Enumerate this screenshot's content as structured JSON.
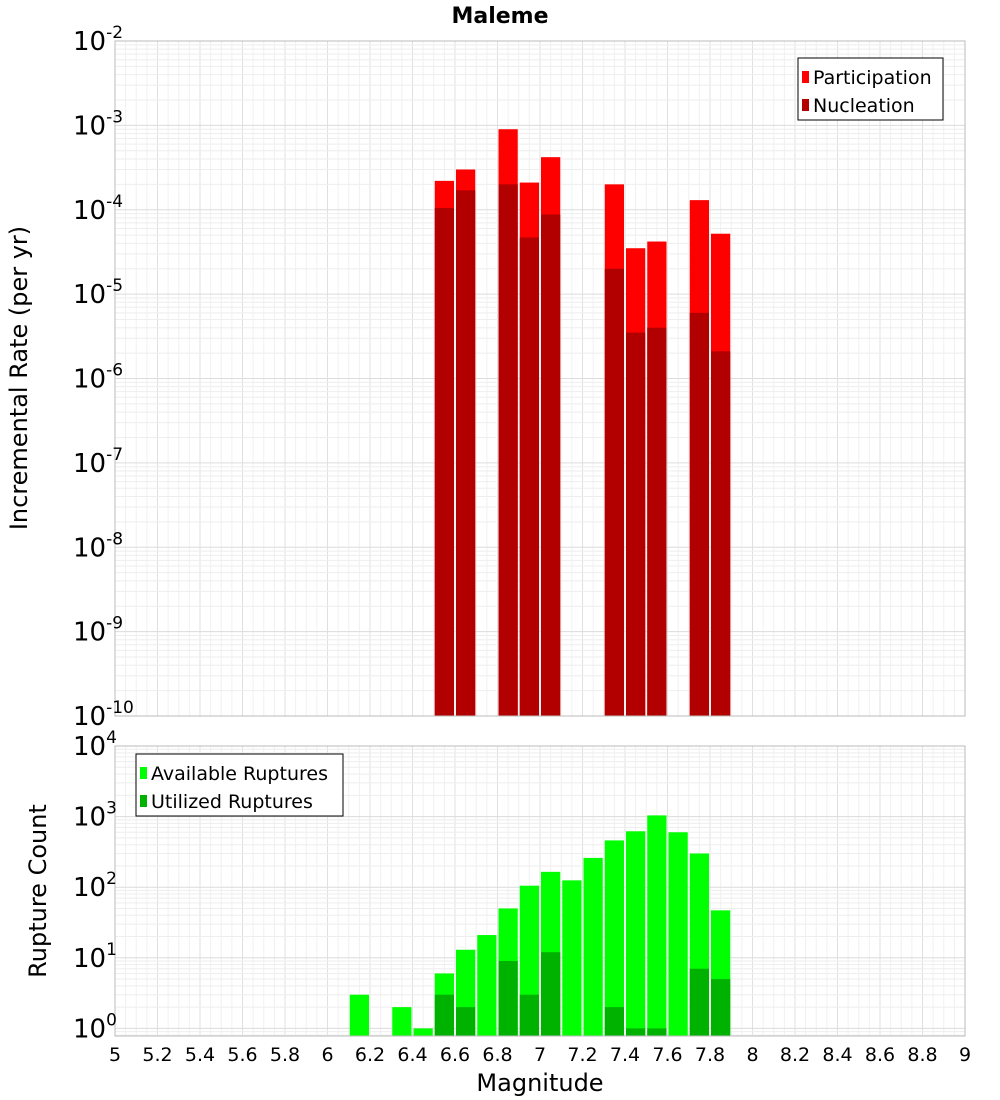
{
  "chart_data": [
    {
      "type": "bar",
      "title": "Maleme",
      "xlabel": "",
      "ylabel": "Incremental Rate (per yr)",
      "yscale": "log",
      "ylim": [
        1e-10,
        0.01
      ],
      "xlim": [
        5,
        9
      ],
      "grid": true,
      "legend": "top-right",
      "colors": {
        "Participation": "#ff0000",
        "Nucleation": "#b20000"
      },
      "x": [
        6.55,
        6.65,
        6.85,
        6.95,
        7.05,
        7.35,
        7.45,
        7.55,
        7.75,
        7.85
      ],
      "series": [
        {
          "name": "Participation",
          "values": [
            0.00022,
            0.0003,
            0.0009,
            0.00021,
            0.00042,
            0.0002,
            3.5e-05,
            4.2e-05,
            0.00013,
            5.2e-05
          ]
        },
        {
          "name": "Nucleation",
          "values": [
            0.000105,
            0.00017,
            0.0002,
            4.7e-05,
            8.8e-05,
            2e-05,
            3.5e-06,
            4e-06,
            6e-06,
            2.1e-06
          ]
        }
      ]
    },
    {
      "type": "bar",
      "title": "",
      "xlabel": "Magnitude",
      "ylabel": "Rupture Count",
      "yscale": "log",
      "ylim": [
        0.78,
        10000
      ],
      "xlim": [
        5,
        9
      ],
      "grid": true,
      "legend": "top-left",
      "colors": {
        "Available Ruptures": "#00ff00",
        "Utilized Ruptures": "#00b200"
      },
      "xticks": [
        "5",
        "5.2",
        "5.4",
        "5.6",
        "5.8",
        "6",
        "6.2",
        "6.4",
        "6.6",
        "6.8",
        "7",
        "7.2",
        "7.4",
        "7.6",
        "7.8",
        "8",
        "8.2",
        "8.4",
        "8.6",
        "8.8",
        "9"
      ],
      "x": [
        6.15,
        6.35,
        6.45,
        6.55,
        6.65,
        6.75,
        6.85,
        6.95,
        7.05,
        7.15,
        7.25,
        7.35,
        7.45,
        7.55,
        7.65,
        7.75,
        7.85
      ],
      "series": [
        {
          "name": "Available Ruptures",
          "values": [
            3,
            2,
            1,
            6,
            13,
            21,
            50,
            105,
            165,
            125,
            260,
            460,
            620,
            1040,
            600,
            300,
            47
          ]
        },
        {
          "name": "Utilized Ruptures",
          "values": [
            0,
            0,
            0,
            3,
            2,
            0,
            9,
            3,
            12,
            0,
            0,
            2,
            1,
            1,
            0,
            7,
            5
          ]
        }
      ]
    }
  ]
}
